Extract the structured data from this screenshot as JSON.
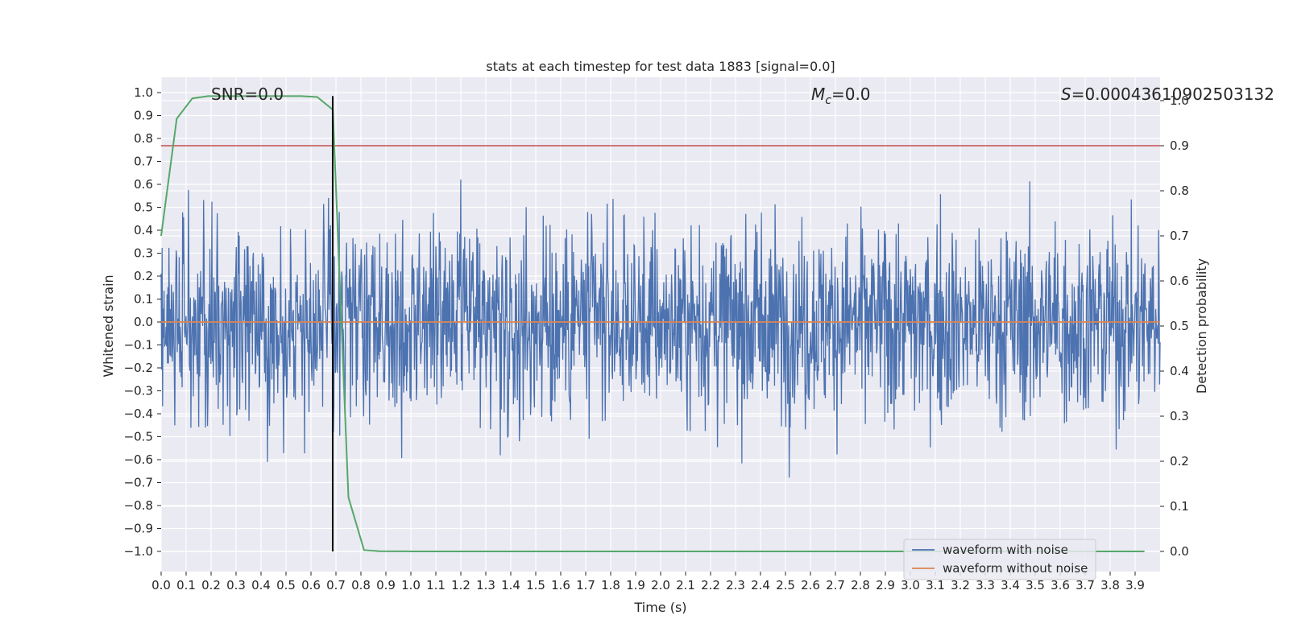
{
  "chart_data": {
    "type": "line",
    "title": "stats at each timestep for test data 1883 [signal=0.0]",
    "xlabel": "Time (s)",
    "ylabel": "Whitened strain",
    "ylabel_right": "Detection probability",
    "xlim": [
      0.0,
      4.0
    ],
    "ylim": [
      -1.1,
      1.05
    ],
    "ylim_right": [
      -0.05,
      1.0
    ],
    "x_ticks": [
      "0.0",
      "0.1",
      "0.2",
      "0.3",
      "0.4",
      "0.5",
      "0.6",
      "0.7",
      "0.8",
      "0.9",
      "1.0",
      "1.1",
      "1.2",
      "1.3",
      "1.4",
      "1.5",
      "1.6",
      "1.7",
      "1.8",
      "1.9",
      "2.0",
      "2.1",
      "2.2",
      "2.3",
      "2.4",
      "2.5",
      "2.6",
      "2.7",
      "2.8",
      "2.9",
      "3.0",
      "3.1",
      "3.2",
      "3.3",
      "3.4",
      "3.5",
      "3.6",
      "3.7",
      "3.8",
      "3.9"
    ],
    "y_ticks": [
      "1.0",
      "0.9",
      "0.8",
      "0.7",
      "0.6",
      "0.5",
      "0.4",
      "0.3",
      "0.2",
      "0.1",
      "0.0",
      "−0.1",
      "−0.2",
      "−0.3",
      "−0.4",
      "−0.5",
      "−0.6",
      "−0.7",
      "−0.8",
      "−0.9",
      "−1.0"
    ],
    "y_ticks_right": [
      "1.0",
      "0.9",
      "0.8",
      "0.7",
      "0.6",
      "0.5",
      "0.4",
      "0.3",
      "0.2",
      "0.1",
      "0.0"
    ],
    "annotations": {
      "snr": "SNR=0.0",
      "mc_symbol": "M",
      "mc_sub": "c",
      "mc_value": "=0.0",
      "s_symbol": "S",
      "s_value": "=0.00043610902503132"
    },
    "series": [
      {
        "name": "waveform with noise",
        "color": "#4c72b0",
        "amplitude": 1.0
      },
      {
        "name": "waveform without noise",
        "color": "#dd8452",
        "values_constant": 0.0
      },
      {
        "name": "detection probability",
        "color": "#55a868",
        "axis": "right",
        "x": [
          0.0,
          0.0625,
          0.125,
          0.1875,
          0.25,
          0.3125,
          0.375,
          0.4375,
          0.5,
          0.5625,
          0.625,
          0.6875,
          0.75,
          0.8125,
          0.875,
          0.9375,
          1.0,
          1.5,
          2.0,
          2.5,
          3.0,
          3.5,
          3.9375
        ],
        "values": [
          0.7,
          0.96,
          1.005,
          1.01,
          1.01,
          1.01,
          1.01,
          1.01,
          1.01,
          1.01,
          1.008,
          0.98,
          0.12,
          0.003,
          0.0005,
          0.0002,
          0.0001,
          0.0001,
          0.0001,
          0.0001,
          0.0001,
          0.0001,
          0.0001
        ]
      }
    ],
    "threshold_right": 0.9,
    "threshold_color": "#c44e52",
    "marker_time": 0.687,
    "legend": {
      "position": "lower-right",
      "entries": [
        "waveform with noise",
        "waveform without noise"
      ]
    }
  }
}
